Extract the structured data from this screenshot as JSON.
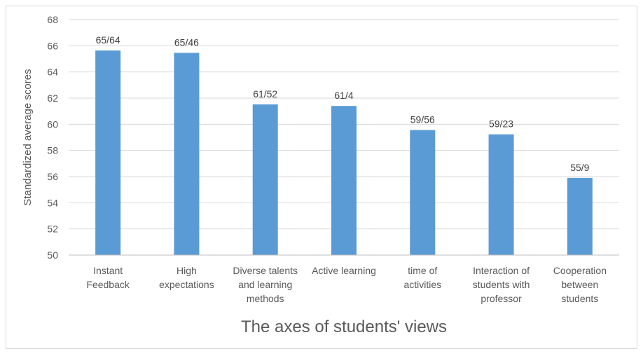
{
  "chart_data": {
    "type": "bar",
    "categories": [
      [
        "Instant",
        "Feedback"
      ],
      [
        "High",
        "expectations"
      ],
      [
        "Diverse talents",
        "and learning",
        "methods"
      ],
      [
        "Active learning"
      ],
      [
        "time of",
        "activities"
      ],
      [
        "Interaction of",
        "students with",
        "professor"
      ],
      [
        "Cooperation",
        "between",
        "students"
      ]
    ],
    "values": [
      65.64,
      65.46,
      61.52,
      61.4,
      59.56,
      59.23,
      55.9
    ],
    "data_labels": [
      "65/64",
      "65/46",
      "61/52",
      "61/4",
      "59/56",
      "59/23",
      "55/9"
    ],
    "xlabel": "The axes of students' views",
    "ylabel": "Standardized average scores",
    "ylim": [
      50,
      68
    ],
    "yticks": [
      50,
      52,
      54,
      56,
      58,
      60,
      62,
      64,
      66,
      68
    ],
    "grid": true,
    "legend": "none",
    "colors": {
      "bar": "#5b9bd5",
      "grid": "#d9d9d9",
      "axis": "#bfbfbf",
      "text": "#595959"
    }
  }
}
